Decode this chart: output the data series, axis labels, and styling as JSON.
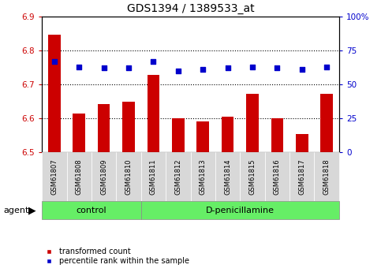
{
  "title": "GDS1394 / 1389533_at",
  "categories": [
    "GSM61807",
    "GSM61808",
    "GSM61809",
    "GSM61810",
    "GSM61811",
    "GSM61812",
    "GSM61813",
    "GSM61814",
    "GSM61815",
    "GSM61816",
    "GSM61817",
    "GSM61818"
  ],
  "bar_values": [
    6.845,
    6.615,
    6.643,
    6.648,
    6.728,
    6.6,
    6.592,
    6.605,
    6.672,
    6.6,
    6.553,
    6.671
  ],
  "percentile_values": [
    67,
    63,
    62,
    62,
    67,
    60,
    61,
    62,
    63,
    62,
    61,
    63
  ],
  "ylim_left": [
    6.5,
    6.9
  ],
  "ylim_right": [
    0,
    100
  ],
  "yticks_left": [
    6.5,
    6.6,
    6.7,
    6.8,
    6.9
  ],
  "yticks_right": [
    0,
    25,
    50,
    75,
    100
  ],
  "ytick_labels_right": [
    "0",
    "25",
    "50",
    "75",
    "100%"
  ],
  "grid_values": [
    6.6,
    6.7,
    6.8
  ],
  "bar_color": "#cc0000",
  "dot_color": "#0000cc",
  "bar_bottom": 6.5,
  "n_control": 4,
  "n_treatment": 8,
  "control_label": "control",
  "treatment_label": "D-penicillamine",
  "agent_label": "agent",
  "legend_bar_label": "transformed count",
  "legend_dot_label": "percentile rank within the sample",
  "group_bg": "#66ee66",
  "tick_bg": "#d8d8d8",
  "left_tick_color": "#cc0000",
  "right_tick_color": "#0000cc",
  "title_color": "#000000",
  "title_fontsize": 10,
  "bar_width": 0.5,
  "dot_size": 18,
  "grid_color": "#000000",
  "grid_linestyle": ":",
  "grid_linewidth": 0.8
}
